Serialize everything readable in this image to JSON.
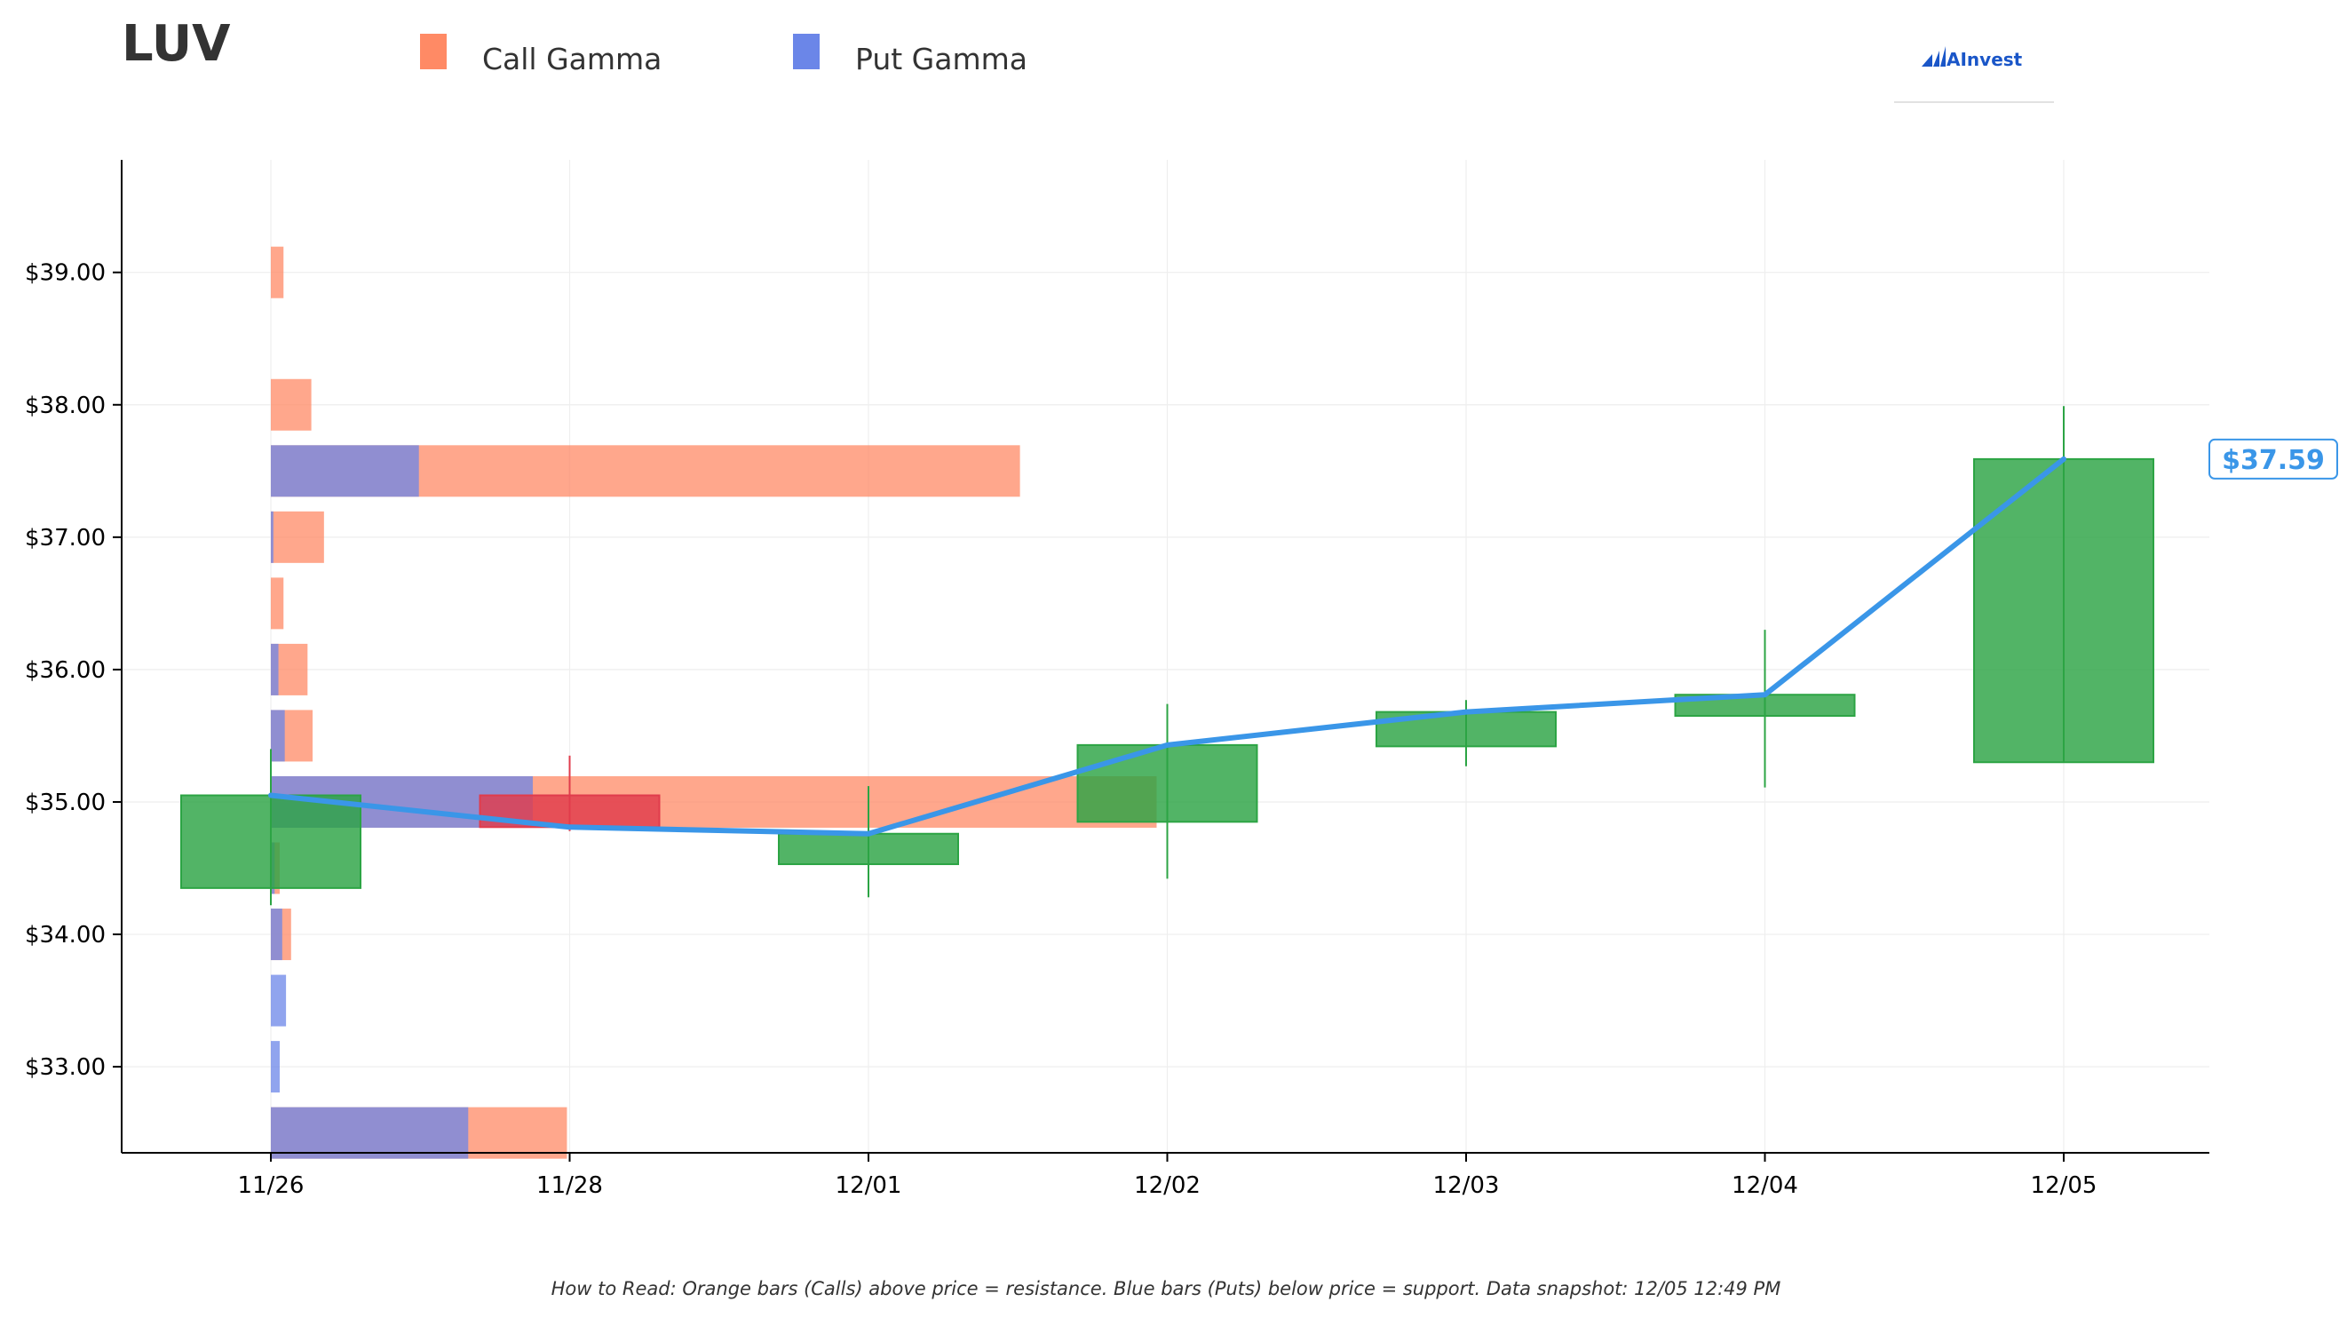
{
  "chart_data": {
    "type": "candlestick",
    "title": "LUV",
    "legend": {
      "placement": "top",
      "entries": [
        {
          "name": "Call Gamma",
          "color": "#ff8a65"
        },
        {
          "name": "Put Gamma",
          "color": "#6b86e8"
        }
      ]
    },
    "brand": "AInvest",
    "footnote": "How to Read: Orange bars (Calls) above price = resistance. Blue bars (Puts) below price = support. Data snapshot: 12/05 12:49 PM",
    "x_categories": [
      "11/26",
      "11/28",
      "12/01",
      "12/02",
      "12/03",
      "12/04",
      "12/05"
    ],
    "y_ticks": [
      33,
      34,
      35,
      36,
      37,
      38,
      39
    ],
    "y_tick_labels": [
      "$33.00",
      "$34.00",
      "$35.00",
      "$36.00",
      "$37.00",
      "$38.00",
      "$39.00"
    ],
    "ylim": [
      32.35,
      39.85
    ],
    "grid": true,
    "candles": [
      {
        "date": "11/26",
        "open": 34.35,
        "high": 35.4,
        "low": 34.22,
        "close": 35.05
      },
      {
        "date": "11/28",
        "open": 35.05,
        "high": 35.35,
        "low": 34.78,
        "close": 34.81
      },
      {
        "date": "12/01",
        "open": 34.53,
        "high": 35.12,
        "low": 34.28,
        "close": 34.76
      },
      {
        "date": "12/02",
        "open": 34.85,
        "high": 35.74,
        "low": 34.42,
        "close": 35.43
      },
      {
        "date": "12/03",
        "open": 35.42,
        "high": 35.77,
        "low": 35.27,
        "close": 35.68
      },
      {
        "date": "12/04",
        "open": 35.65,
        "high": 36.3,
        "low": 35.11,
        "close": 35.81
      },
      {
        "date": "12/05",
        "open": 35.3,
        "high": 37.99,
        "low": 35.3,
        "close": 37.59
      }
    ],
    "up_color": "#2ca444",
    "down_color": "#e03c4c",
    "close_line_color": "#3a96e8",
    "last_price_label": "$37.59",
    "gamma_bars": [
      {
        "strike": 39.0,
        "call": 0.1,
        "put": 0
      },
      {
        "strike": 38.0,
        "call": 0.32,
        "put": 0
      },
      {
        "strike": 37.5,
        "call": 5.92,
        "put": 1.17
      },
      {
        "strike": 37.0,
        "call": 0.42,
        "put": 0.02
      },
      {
        "strike": 36.5,
        "call": 0.1,
        "put": 0
      },
      {
        "strike": 36.0,
        "call": 0.29,
        "put": 0.06
      },
      {
        "strike": 35.5,
        "call": 0.33,
        "put": 0.11
      },
      {
        "strike": 35.0,
        "call": 7.0,
        "put": 2.07
      },
      {
        "strike": 34.5,
        "call": 0.07,
        "put": 0.03
      },
      {
        "strike": 34.0,
        "call": 0.16,
        "put": 0.09
      },
      {
        "strike": 33.5,
        "call": 0,
        "put": 0.12
      },
      {
        "strike": 33.0,
        "call": 0,
        "put": 0.07
      },
      {
        "strike": 32.5,
        "call": 2.34,
        "put": 1.56
      }
    ]
  }
}
